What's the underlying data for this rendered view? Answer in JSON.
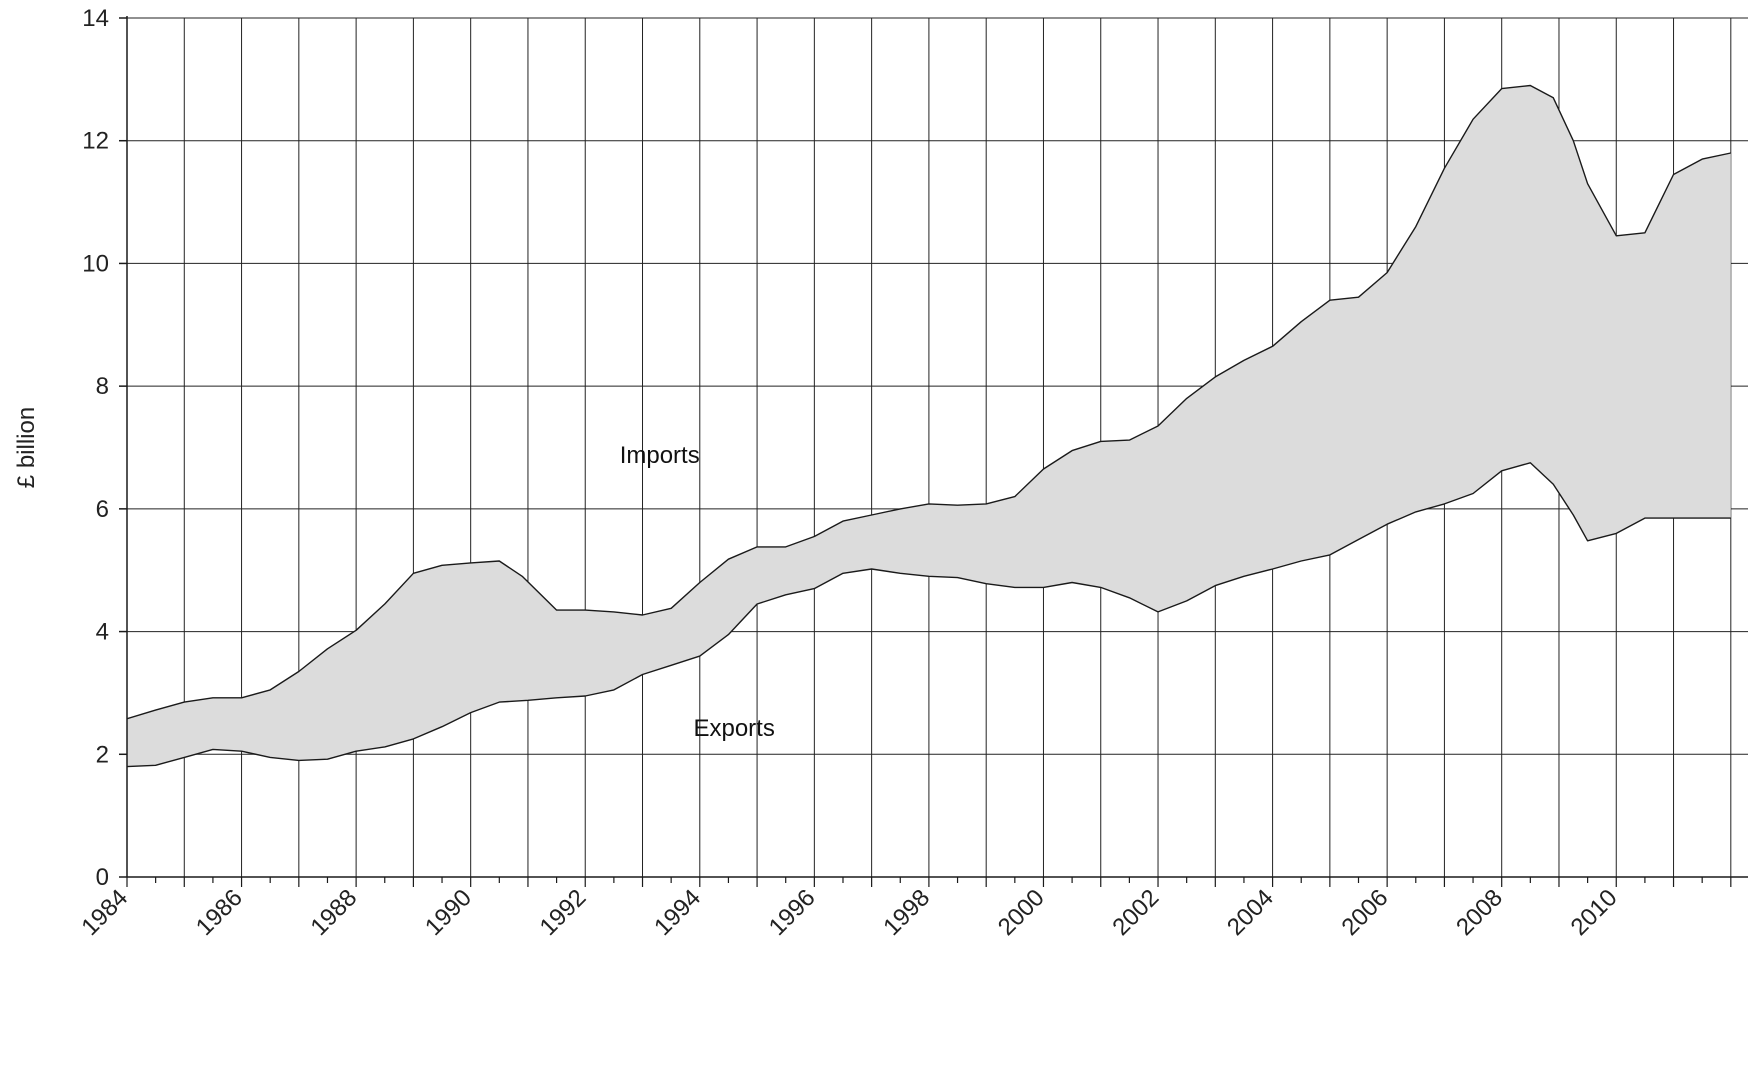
{
  "chart_data": {
    "type": "area",
    "title": "",
    "xlabel": "",
    "ylabel": "£ billion",
    "xlim": [
      1984,
      2012.3
    ],
    "ylim": [
      0,
      14
    ],
    "y_ticks": [
      "0",
      "2",
      "4",
      "6",
      "8",
      "10",
      "12",
      "14"
    ],
    "x_ticks": [
      "1984",
      "1986",
      "1988",
      "1990",
      "1992",
      "1994",
      "1996",
      "1998",
      "2000",
      "2002",
      "2004",
      "2006",
      "2008",
      "2010"
    ],
    "grid": true,
    "fill_between_series": true,
    "colors": {
      "band_fill": "#dcdcdc",
      "line": "#1a1a1a",
      "grid": "#222222"
    },
    "series": [
      {
        "name": "Imports",
        "x": [
          1984.0,
          1984.5,
          1985.0,
          1985.5,
          1986.0,
          1986.5,
          1987.0,
          1987.5,
          1988.0,
          1988.5,
          1989.0,
          1989.5,
          1990.0,
          1990.5,
          1990.9,
          1991.5,
          1992.0,
          1992.5,
          1993.0,
          1993.5,
          1994.0,
          1994.5,
          1995.0,
          1995.5,
          1996.0,
          1996.5,
          1997.0,
          1997.5,
          1998.0,
          1998.5,
          1999.0,
          1999.5,
          2000.0,
          2000.5,
          2001.0,
          2001.5,
          2002.0,
          2002.5,
          2003.0,
          2003.5,
          2004.0,
          2004.5,
          2005.0,
          2005.5,
          2006.0,
          2006.5,
          2007.0,
          2007.5,
          2008.0,
          2008.5,
          2008.9,
          2009.25,
          2009.5,
          2010.0,
          2010.5,
          2011.0,
          2011.5,
          2012.0
        ],
        "values": [
          2.58,
          2.72,
          2.85,
          2.92,
          2.92,
          3.05,
          3.35,
          3.72,
          4.02,
          4.45,
          4.95,
          5.08,
          5.12,
          5.15,
          4.9,
          4.35,
          4.35,
          4.32,
          4.27,
          4.38,
          4.8,
          5.18,
          5.38,
          5.38,
          5.55,
          5.8,
          5.9,
          6.0,
          6.08,
          6.06,
          6.08,
          6.2,
          6.65,
          6.95,
          7.1,
          7.12,
          7.35,
          7.8,
          8.15,
          8.42,
          8.65,
          9.05,
          9.4,
          9.45,
          9.85,
          10.6,
          11.55,
          12.35,
          12.85,
          12.9,
          12.7,
          12.0,
          11.3,
          10.45,
          10.5,
          11.45,
          11.7,
          11.8
        ]
      },
      {
        "name": "Exports",
        "x": [
          1984.0,
          1984.5,
          1985.0,
          1985.5,
          1986.0,
          1986.5,
          1987.0,
          1987.5,
          1988.0,
          1988.5,
          1989.0,
          1989.5,
          1990.0,
          1990.5,
          1991.0,
          1991.5,
          1992.0,
          1992.5,
          1993.0,
          1993.5,
          1994.0,
          1994.5,
          1995.0,
          1995.5,
          1996.0,
          1996.5,
          1997.0,
          1997.5,
          1998.0,
          1998.5,
          1999.0,
          1999.5,
          2000.0,
          2000.5,
          2001.0,
          2001.5,
          2002.0,
          2002.5,
          2003.0,
          2003.5,
          2004.0,
          2004.5,
          2005.0,
          2005.5,
          2006.0,
          2006.5,
          2007.0,
          2007.5,
          2008.0,
          2008.5,
          2008.9,
          2009.25,
          2009.5,
          2010.0,
          2010.5,
          2011.0,
          2011.5,
          2012.0
        ],
        "values": [
          1.8,
          1.82,
          1.95,
          2.08,
          2.05,
          1.95,
          1.9,
          1.92,
          2.05,
          2.12,
          2.25,
          2.45,
          2.68,
          2.85,
          2.88,
          2.92,
          2.95,
          3.05,
          3.3,
          3.45,
          3.6,
          3.95,
          4.45,
          4.6,
          4.7,
          4.95,
          5.02,
          4.95,
          4.9,
          4.88,
          4.78,
          4.72,
          4.72,
          4.8,
          4.72,
          4.55,
          4.32,
          4.5,
          4.75,
          4.9,
          5.02,
          5.15,
          5.25,
          5.5,
          5.75,
          5.95,
          6.08,
          6.25,
          6.62,
          6.75,
          6.4,
          5.9,
          5.48,
          5.6,
          5.85,
          5.85,
          5.85,
          5.85
        ]
      }
    ],
    "annotations": [
      {
        "text": "Imports",
        "x": 1993.3,
        "y": 6.75
      },
      {
        "text": "Exports",
        "x": 1994.6,
        "y": 2.3
      }
    ]
  }
}
